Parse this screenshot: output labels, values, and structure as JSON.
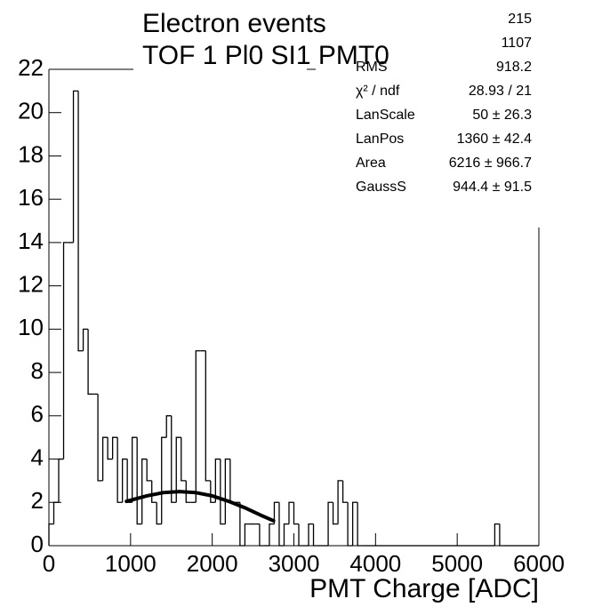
{
  "chart_data": {
    "type": "histogram",
    "title": "Electron events",
    "subtitle": "TOF 1 Pl0 SI1 PMT0",
    "x_label": "PMT Charge [ADC]",
    "bins": [
      0,
      60,
      120,
      180,
      240,
      300,
      360,
      420,
      480,
      540,
      600,
      660,
      720,
      780,
      840,
      900,
      960,
      1020,
      1080,
      1140,
      1200,
      1260,
      1320,
      1380,
      1440,
      1500,
      1560,
      1620,
      1680,
      1740,
      1800,
      1860,
      1920,
      1980,
      2040,
      2100,
      2160,
      2220,
      2280,
      2340,
      2400,
      2460,
      2520,
      2580,
      2640,
      2700,
      2760,
      2820,
      2880,
      2940,
      3000,
      3060,
      3120,
      3180,
      3240,
      3300,
      3360,
      3420,
      3480,
      3540,
      3600,
      3660,
      3720,
      3780,
      3840,
      3900,
      3960,
      4020,
      4080,
      4140,
      4200,
      4260,
      4320,
      4380,
      4440,
      4500,
      4560,
      4620,
      4680,
      4740,
      4800,
      4860,
      4920,
      4980,
      5040,
      5100,
      5160,
      5220,
      5280,
      5340,
      5400,
      5460,
      5520,
      5580,
      5640,
      5700,
      5760,
      5820,
      5880,
      5940,
      6000
    ],
    "values": [
      1,
      2,
      4,
      14,
      14,
      21,
      9,
      10,
      7,
      7,
      3,
      5,
      4,
      5,
      2,
      4,
      2,
      5,
      1,
      4,
      3,
      2,
      1,
      5,
      6,
      2,
      5,
      3,
      2,
      2,
      9,
      9,
      3,
      2,
      4,
      1,
      4,
      2,
      2,
      0,
      1,
      1,
      1,
      0,
      0,
      1,
      2,
      0,
      1,
      2,
      1,
      0,
      0,
      1,
      0,
      0,
      0,
      2,
      1,
      3,
      2,
      0,
      2,
      0,
      0,
      0,
      0,
      0,
      0,
      0,
      0,
      0,
      0,
      0,
      0,
      0,
      0,
      0,
      0,
      0,
      0,
      0,
      0,
      0,
      0,
      0,
      0,
      0,
      0,
      0,
      0,
      1,
      0,
      0,
      0,
      0,
      0,
      0,
      0,
      0
    ],
    "color": "#000000",
    "fit": {
      "x": [
        950,
        1200,
        1400,
        1600,
        1800,
        2000,
        2200,
        2400,
        2600,
        2750
      ],
      "y": [
        2.05,
        2.3,
        2.45,
        2.5,
        2.45,
        2.3,
        2.05,
        1.75,
        1.4,
        1.15
      ],
      "color": "#000000"
    },
    "stats": [
      {
        "value": "215"
      },
      {
        "value": "1107"
      },
      {
        "name": "RMS",
        "value": "918.2"
      },
      {
        "name": "χ² / ndf",
        "value": "28.93 / 21"
      },
      {
        "name": "LanScale",
        "value": "50 ± 26.3"
      },
      {
        "name": "LanPos",
        "value": "1360 ± 42.4"
      },
      {
        "name": "Area",
        "value": "6216 ± 966.7"
      },
      {
        "name": "GaussS",
        "value": "944.4 ± 91.5"
      }
    ],
    "xlim": [
      0,
      6000
    ],
    "xticks": [
      0,
      1000,
      2000,
      3000,
      4000,
      5000,
      6000
    ],
    "ylim": [
      0,
      22
    ],
    "yticks": [
      0,
      2,
      4,
      6,
      8,
      10,
      12,
      14,
      16,
      18,
      20,
      22
    ]
  }
}
